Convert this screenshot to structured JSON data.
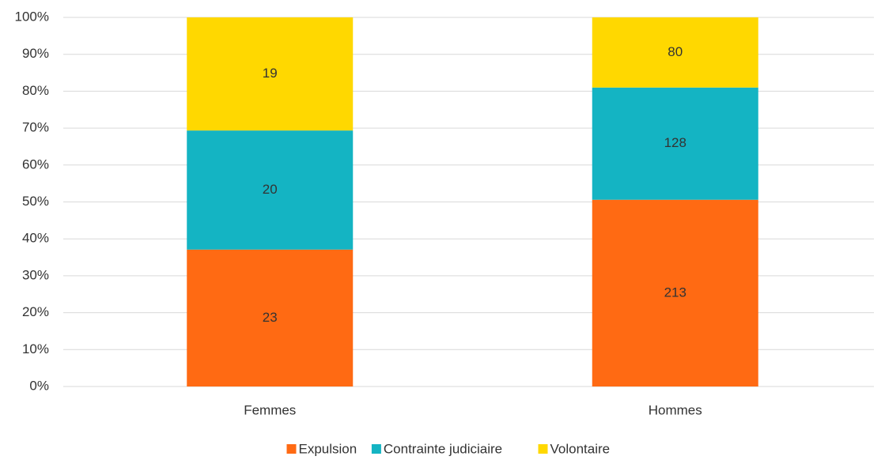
{
  "chart_data": {
    "type": "bar",
    "stacking": "percent",
    "categories": [
      "Femmes",
      "Hommes"
    ],
    "series": [
      {
        "name": "Expulsion",
        "color": "#ff6a13",
        "values": [
          23,
          213
        ]
      },
      {
        "name": "Contrainte judiciaire",
        "color": "#14b4c3",
        "values": [
          20,
          128
        ]
      },
      {
        "name": "Volontaire",
        "color": "#ffd800",
        "values": [
          19,
          80
        ]
      }
    ],
    "ylim": [
      0,
      100
    ],
    "yticks": [
      {
        "value": 0,
        "label": "0%"
      },
      {
        "value": 10,
        "label": "10%"
      },
      {
        "value": 20,
        "label": "20%"
      },
      {
        "value": 30,
        "label": "30%"
      },
      {
        "value": 40,
        "label": "40%"
      },
      {
        "value": 50,
        "label": "50%"
      },
      {
        "value": 60,
        "label": "60%"
      },
      {
        "value": 70,
        "label": "70%"
      },
      {
        "value": 80,
        "label": "80%"
      },
      {
        "value": 90,
        "label": "90%"
      },
      {
        "value": 100,
        "label": "100%"
      }
    ],
    "grid": true,
    "legend": "bottom"
  }
}
